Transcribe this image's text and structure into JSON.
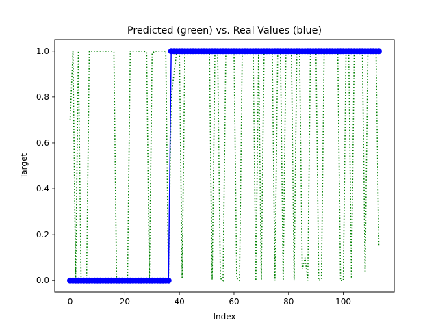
{
  "chart_data": {
    "type": "line",
    "title": "Predicted (green) vs. Real Values (blue)",
    "xlabel": "Index",
    "ylabel": "Target",
    "xlim": [
      -5.65,
      118.65
    ],
    "ylim": [
      -0.05,
      1.05
    ],
    "xticks": [
      0,
      20,
      40,
      60,
      80,
      100
    ],
    "yticks": [
      0.0,
      0.2,
      0.4,
      0.6,
      0.8,
      1.0
    ],
    "xtick_labels": [
      "0",
      "20",
      "40",
      "60",
      "80",
      "100"
    ],
    "ytick_labels": [
      "0.0",
      "0.2",
      "0.4",
      "0.6",
      "0.8",
      "1.0"
    ],
    "grid": false,
    "series": [
      {
        "role": "predicted",
        "color": "#008000",
        "style": "dotted",
        "x": [
          0,
          1,
          2,
          3,
          4,
          5,
          6,
          7,
          8,
          9,
          10,
          11,
          12,
          13,
          14,
          15,
          16,
          17,
          18,
          19,
          20,
          21,
          22,
          23,
          24,
          25,
          26,
          27,
          28,
          29,
          30,
          31,
          32,
          33,
          34,
          35,
          36,
          37,
          38,
          39,
          40,
          41,
          42,
          43,
          44,
          45,
          46,
          47,
          48,
          49,
          50,
          51,
          52,
          53,
          54,
          55,
          56,
          57,
          58,
          59,
          60,
          61,
          62,
          63,
          64,
          65,
          66,
          67,
          68,
          69,
          70,
          71,
          72,
          73,
          74,
          75,
          76,
          77,
          78,
          79,
          80,
          81,
          82,
          83,
          84,
          85,
          86,
          87,
          88,
          89,
          90,
          91,
          92,
          93,
          94,
          95,
          96,
          97,
          98,
          99,
          100,
          101,
          102,
          103,
          104,
          105,
          106,
          107,
          108,
          109,
          110,
          111,
          112,
          113
        ],
        "values": [
          0.7,
          1.0,
          0.0,
          1.0,
          0.0,
          0.0,
          0.0,
          1.0,
          1.0,
          1.0,
          1.0,
          1.0,
          1.0,
          1.0,
          1.0,
          1.0,
          0.995,
          0.0,
          0.0,
          0.0,
          0.0,
          0.0,
          1.0,
          1.0,
          1.0,
          1.0,
          1.0,
          1.0,
          0.995,
          0.0,
          0.99,
          1.0,
          1.0,
          1.0,
          1.0,
          1.0,
          0.0,
          0.8,
          0.9,
          1.0,
          1.0,
          0.01,
          1.0,
          1.0,
          1.0,
          1.0,
          1.0,
          1.0,
          1.0,
          1.0,
          1.0,
          1.0,
          0.0,
          1.0,
          1.0,
          0.01,
          0.0,
          1.0,
          1.0,
          1.0,
          1.0,
          0.01,
          0.0,
          1.0,
          1.0,
          1.0,
          1.0,
          1.0,
          0.0,
          1.0,
          0.0,
          1.0,
          1.0,
          1.0,
          1.0,
          0.0,
          1.0,
          1.0,
          0.0,
          1.0,
          1.0,
          1.0,
          0.0,
          1.0,
          1.0,
          0.05,
          0.1,
          0.0,
          1.0,
          1.0,
          1.0,
          0.0,
          0.01,
          1.0,
          1.0,
          1.0,
          1.0,
          1.0,
          1.0,
          0.0,
          0.0,
          1.0,
          1.0,
          0.01,
          1.0,
          1.0,
          1.0,
          1.0,
          0.04,
          1.0,
          1.0,
          1.0,
          1.0,
          0.15
        ]
      },
      {
        "role": "real",
        "color": "#0000ff",
        "style": "solid-with-circle-markers",
        "x": [
          0,
          1,
          2,
          3,
          4,
          5,
          6,
          7,
          8,
          9,
          10,
          11,
          12,
          13,
          14,
          15,
          16,
          17,
          18,
          19,
          20,
          21,
          22,
          23,
          24,
          25,
          26,
          27,
          28,
          29,
          30,
          31,
          32,
          33,
          34,
          35,
          36,
          37,
          38,
          39,
          40,
          41,
          42,
          43,
          44,
          45,
          46,
          47,
          48,
          49,
          50,
          51,
          52,
          53,
          54,
          55,
          56,
          57,
          58,
          59,
          60,
          61,
          62,
          63,
          64,
          65,
          66,
          67,
          68,
          69,
          70,
          71,
          72,
          73,
          74,
          75,
          76,
          77,
          78,
          79,
          80,
          81,
          82,
          83,
          84,
          85,
          86,
          87,
          88,
          89,
          90,
          91,
          92,
          93,
          94,
          95,
          96,
          97,
          98,
          99,
          100,
          101,
          102,
          103,
          104,
          105,
          106,
          107,
          108,
          109,
          110,
          111,
          112,
          113
        ],
        "values": [
          0,
          0,
          0,
          0,
          0,
          0,
          0,
          0,
          0,
          0,
          0,
          0,
          0,
          0,
          0,
          0,
          0,
          0,
          0,
          0,
          0,
          0,
          0,
          0,
          0,
          0,
          0,
          0,
          0,
          0,
          0,
          0,
          0,
          0,
          0,
          0,
          0,
          1,
          1,
          1,
          1,
          1,
          1,
          1,
          1,
          1,
          1,
          1,
          1,
          1,
          1,
          1,
          1,
          1,
          1,
          1,
          1,
          1,
          1,
          1,
          1,
          1,
          1,
          1,
          1,
          1,
          1,
          1,
          1,
          1,
          1,
          1,
          1,
          1,
          1,
          1,
          1,
          1,
          1,
          1,
          1,
          1,
          1,
          1,
          1,
          1,
          1,
          1,
          1,
          1,
          1,
          1,
          1,
          1,
          1,
          1,
          1,
          1,
          1,
          1,
          1,
          1,
          1,
          1,
          1,
          1,
          1,
          1,
          1,
          1,
          1,
          1,
          1,
          1
        ]
      }
    ]
  }
}
